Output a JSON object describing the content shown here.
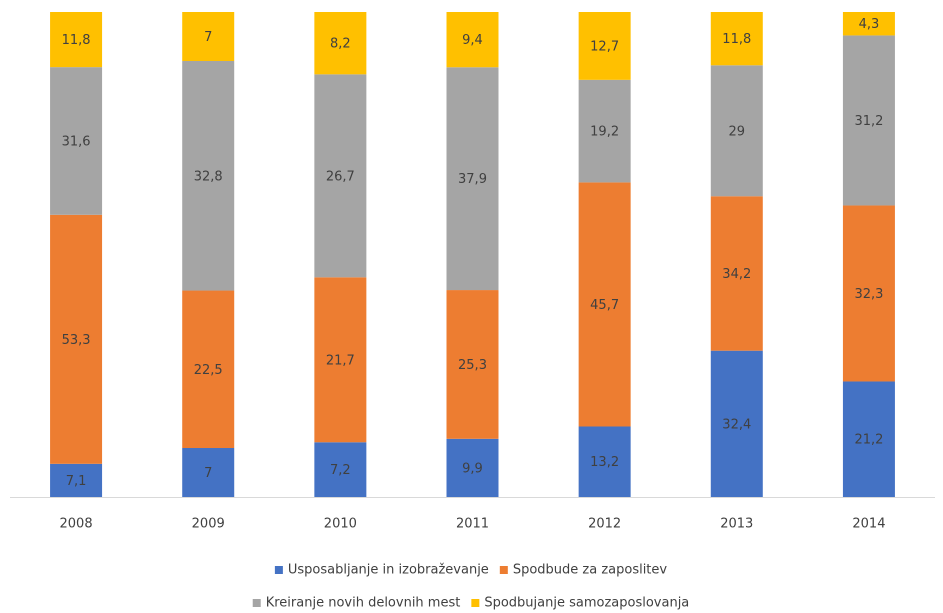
{
  "chart_data": {
    "type": "stacked_percent_bar",
    "categories": [
      "2008",
      "2009",
      "2010",
      "2011",
      "2012",
      "2013",
      "2014"
    ],
    "series": [
      {
        "name": "Usposabljanje in izobraževanje",
        "color": "#4472c4",
        "values": [
          7.1,
          7,
          7.2,
          9.9,
          13.2,
          32.4,
          21.2
        ],
        "value_labels": [
          "7,1",
          "7",
          "7,2",
          "9,9",
          "13,2",
          "32,4",
          "21,2"
        ]
      },
      {
        "name": "Spodbude za zaposlitev",
        "color": "#ed7d31",
        "values": [
          53.3,
          22.5,
          21.7,
          25.3,
          45.7,
          34.2,
          32.3
        ],
        "value_labels": [
          "53,3",
          "22,5",
          "21,7",
          "25,3",
          "45,7",
          "34,2",
          "32,3"
        ]
      },
      {
        "name": "Kreiranje novih delovnih mest",
        "color": "#a5a5a5",
        "values": [
          31.6,
          32.8,
          26.7,
          37.9,
          19.2,
          29,
          31.2
        ],
        "value_labels": [
          "31,6",
          "32,8",
          "26,7",
          "37,9",
          "19,2",
          "29",
          "31,2"
        ]
      },
      {
        "name": "Spodbujanje samozaposlovanja",
        "color": "#ffc000",
        "values": [
          11.8,
          7,
          8.2,
          9.4,
          12.7,
          11.8,
          4.3
        ],
        "value_labels": [
          "11,8",
          "7",
          "8,2",
          "9,4",
          "12,7",
          "11,8",
          "4,3"
        ]
      }
    ],
    "legend": "bottom"
  }
}
